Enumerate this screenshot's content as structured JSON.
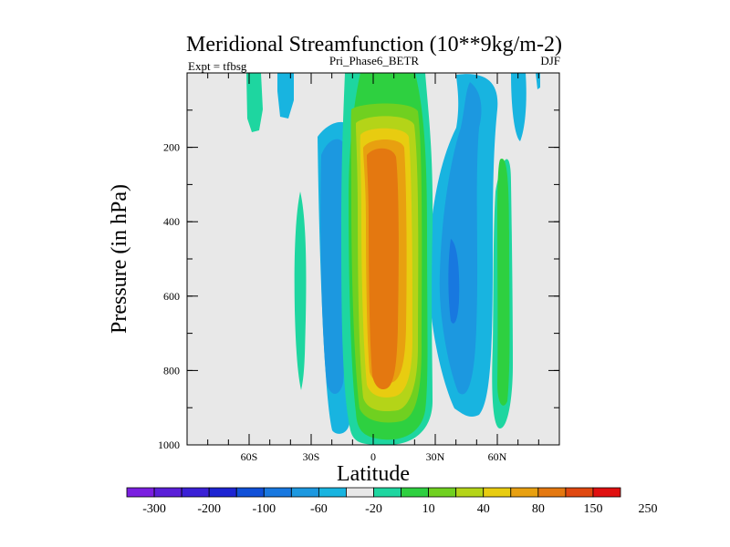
{
  "chart_data": {
    "type": "contour",
    "title": "Meridional Streamfunction (10**9kg/m-2)",
    "left_label": "Expt = tfbsg",
    "center_label": "Pri_Phase6_BETR",
    "right_label": "DJF",
    "xlabel": "Latitude",
    "ylabel": "Pressure (in hPa)",
    "xlim": [
      -90,
      90
    ],
    "ylim": [
      1000,
      0
    ],
    "x_ticks": [
      {
        "value": -60,
        "label": "60S"
      },
      {
        "value": -30,
        "label": "30S"
      },
      {
        "value": 0,
        "label": "0"
      },
      {
        "value": 30,
        "label": "30N"
      },
      {
        "value": 60,
        "label": "60N"
      }
    ],
    "y_ticks": [
      {
        "value": 200,
        "label": "200"
      },
      {
        "value": 400,
        "label": "400"
      },
      {
        "value": 600,
        "label": "600"
      },
      {
        "value": 800,
        "label": "800"
      },
      {
        "value": 1000,
        "label": "1000"
      }
    ],
    "colorbar": {
      "colors": [
        "#7a1fe0",
        "#5a1fd8",
        "#3a20d6",
        "#1d24d2",
        "#1050d8",
        "#1878e0",
        "#1c98e0",
        "#18b4e0",
        "#e8e8e8",
        "#1ed6a0",
        "#2ed040",
        "#70d020",
        "#b4d418",
        "#e8cc10",
        "#e8a010",
        "#e47810",
        "#e04810",
        "#e01010"
      ],
      "boundaries": [
        "-300",
        "-200",
        "-100",
        "-60",
        "-20",
        "10",
        "40",
        "80",
        "150",
        "250"
      ]
    },
    "features": [
      {
        "name": "main-cell",
        "color_index": 10,
        "lat_range": [
          -14,
          23
        ],
        "p_range": [
          1000,
          0
        ]
      },
      {
        "name": "sh-neg-cell",
        "color_index": 7,
        "lat_range": [
          -28,
          -14
        ],
        "p_range": [
          960,
          120
        ]
      },
      {
        "name": "nh-neg-cell",
        "color_index": 6,
        "lat_range": [
          30,
          55
        ],
        "p_range": [
          900,
          0
        ]
      },
      {
        "name": "nh-pos-cell",
        "color_index": 9,
        "lat_range": [
          59,
          66
        ],
        "p_range": [
          950,
          130
        ]
      }
    ]
  }
}
